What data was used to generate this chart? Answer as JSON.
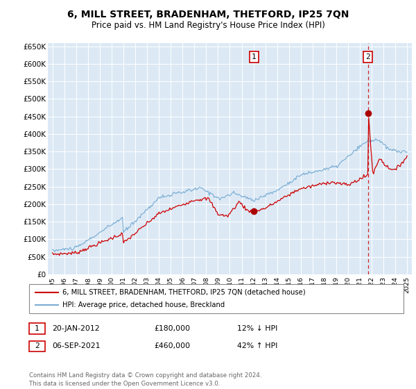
{
  "title": "6, MILL STREET, BRADENHAM, THETFORD, IP25 7QN",
  "subtitle": "Price paid vs. HM Land Registry's House Price Index (HPI)",
  "legend_line1": "6, MILL STREET, BRADENHAM, THETFORD, IP25 7QN (detached house)",
  "legend_line2": "HPI: Average price, detached house, Breckland",
  "annotation1_date": "20-JAN-2012",
  "annotation1_price": "£180,000",
  "annotation1_pct": "12% ↓ HPI",
  "annotation2_date": "06-SEP-2021",
  "annotation2_price": "£460,000",
  "annotation2_pct": "42% ↑ HPI",
  "footer": "Contains HM Land Registry data © Crown copyright and database right 2024.\nThis data is licensed under the Open Government Licence v3.0.",
  "hpi_color": "#7aadd4",
  "price_color": "#cc0000",
  "marker_color": "#aa0000",
  "ylim": [
    0,
    660000
  ],
  "yticks": [
    0,
    50000,
    100000,
    150000,
    200000,
    250000,
    300000,
    350000,
    400000,
    450000,
    500000,
    550000,
    600000,
    650000
  ],
  "ytick_labels": [
    "£0",
    "£50K",
    "£100K",
    "£150K",
    "£200K",
    "£250K",
    "£300K",
    "£350K",
    "£400K",
    "£450K",
    "£500K",
    "£550K",
    "£600K",
    "£650K"
  ],
  "xtick_years": [
    1995,
    1996,
    1997,
    1998,
    1999,
    2000,
    2001,
    2002,
    2003,
    2004,
    2005,
    2006,
    2007,
    2008,
    2009,
    2010,
    2011,
    2012,
    2013,
    2014,
    2015,
    2016,
    2017,
    2018,
    2019,
    2020,
    2021,
    2022,
    2023,
    2024,
    2025
  ],
  "transaction1_x": 2012.05,
  "transaction1_y": 180000,
  "transaction2_x": 2021.68,
  "transaction2_y": 460000,
  "vline_x": 2021.68,
  "plot_bg_color": "#dce9f5",
  "xlim_left": 1994.6,
  "xlim_right": 2025.4
}
